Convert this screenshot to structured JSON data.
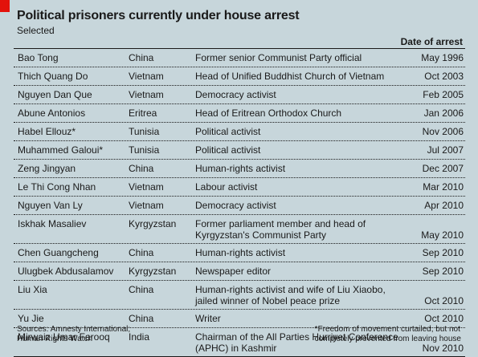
{
  "chart_data": {
    "type": "table",
    "title": "Political prisoners currently under house arrest",
    "subtitle": "Selected",
    "date_header": "Date of arrest",
    "rows": [
      {
        "name": "Bao Tong",
        "country": "China",
        "description": "Former senior Communist Party official",
        "date": "May 1996"
      },
      {
        "name": "Thich Quang Do",
        "country": "Vietnam",
        "description": "Head of Unified Buddhist Church of Vietnam",
        "date": "Oct 2003"
      },
      {
        "name": "Nguyen Dan Que",
        "country": "Vietnam",
        "description": "Democracy activist",
        "date": "Feb 2005"
      },
      {
        "name": "Abune Antonios",
        "country": "Eritrea",
        "description": "Head of Eritrean Orthodox Church",
        "date": "Jan 2006"
      },
      {
        "name": "Habel Ellouz*",
        "country": "Tunisia",
        "description": "Political activist",
        "date": "Nov 2006"
      },
      {
        "name": "Muhammed Galoui*",
        "country": "Tunisia",
        "description": "Political activist",
        "date": "Jul 2007"
      },
      {
        "name": "Zeng Jingyan",
        "country": "China",
        "description": "Human-rights activist",
        "date": "Dec 2007"
      },
      {
        "name": "Le Thi Cong Nhan",
        "country": "Vietnam",
        "description": "Labour activist",
        "date": "Mar 2010"
      },
      {
        "name": "Nguyen Van Ly",
        "country": "Vietnam",
        "description": "Democracy activist",
        "date": "Apr 2010"
      },
      {
        "name": "Iskhak Masaliev",
        "country": "Kyrgyzstan",
        "description": "Former parliament member and head of\nKyrgyzstan's Communist Party",
        "date": "May 2010"
      },
      {
        "name": "Chen Guangcheng",
        "country": "China",
        "description": "Human-rights activist",
        "date": "Sep 2010"
      },
      {
        "name": "Ulugbek Abdusalamov",
        "country": "Kyrgyzstan",
        "description": "Newspaper editor",
        "date": "Sep 2010"
      },
      {
        "name": "Liu Xia",
        "country": "China",
        "description": "Human-rights activist and wife of Liu Xiaobo,\njailed winner of Nobel peace prize",
        "date": "Oct 2010"
      },
      {
        "name": "Yu Jie",
        "country": "China",
        "description": "Writer",
        "date": "Oct 2010"
      },
      {
        "name": "Mirwaiz Umar Farooq",
        "country": "India",
        "description": "Chairman of the All Parties Hurriyet Conference\n(APHC) in Kashmir",
        "date": "Nov 2010"
      }
    ],
    "source": "Sources: Amnesty International;\nHuman Rights Watch",
    "footnote": "*Freedom of movement curtailed, but not\ncompletely prevented from leaving house"
  },
  "colors": {
    "background": "#c7d6db",
    "accent": "#e3120b",
    "text": "#1a1a1a"
  }
}
